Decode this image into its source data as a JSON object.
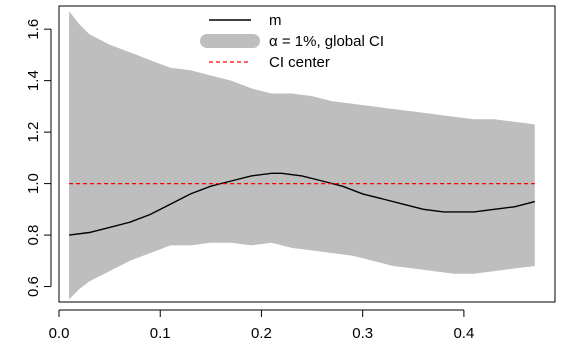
{
  "chart_data": {
    "type": "area",
    "title": "",
    "xlabel": "",
    "ylabel": "",
    "xlim": [
      0.0,
      0.49
    ],
    "ylim": [
      0.54,
      1.69
    ],
    "x_ticks": [
      0.0,
      0.1,
      0.2,
      0.3,
      0.4
    ],
    "x_tick_labels": [
      "0.0",
      "0.1",
      "0.2",
      "0.3",
      "0.4"
    ],
    "y_ticks": [
      0.6,
      0.8,
      1.0,
      1.2,
      1.4,
      1.6
    ],
    "y_tick_labels": [
      "0.6",
      "0.8",
      "1.0",
      "1.2",
      "1.4",
      "1.6"
    ],
    "grid": false,
    "legend_position": "top-center",
    "legend": [
      {
        "label": "m",
        "style": "line",
        "color": "#000000"
      },
      {
        "label": "α = 1%, global CI",
        "style": "band",
        "color": "#bebebe"
      },
      {
        "label": "CI center",
        "style": "dashed",
        "color": "#ff0000"
      }
    ],
    "series": [
      {
        "name": "m",
        "type": "line",
        "color": "#000000",
        "x": [
          0.01,
          0.03,
          0.05,
          0.07,
          0.09,
          0.11,
          0.13,
          0.15,
          0.17,
          0.19,
          0.21,
          0.22,
          0.24,
          0.26,
          0.28,
          0.3,
          0.32,
          0.34,
          0.36,
          0.38,
          0.4,
          0.41,
          0.43,
          0.45,
          0.47
        ],
        "y": [
          0.8,
          0.81,
          0.83,
          0.85,
          0.88,
          0.92,
          0.96,
          0.99,
          1.01,
          1.03,
          1.04,
          1.04,
          1.03,
          1.01,
          0.99,
          0.96,
          0.94,
          0.92,
          0.9,
          0.89,
          0.89,
          0.89,
          0.9,
          0.91,
          0.93
        ]
      },
      {
        "name": "α = 1%, global CI",
        "type": "band",
        "color": "#bebebe",
        "x": [
          0.01,
          0.02,
          0.03,
          0.05,
          0.07,
          0.09,
          0.11,
          0.13,
          0.15,
          0.17,
          0.19,
          0.21,
          0.23,
          0.25,
          0.27,
          0.29,
          0.31,
          0.33,
          0.35,
          0.37,
          0.39,
          0.41,
          0.43,
          0.45,
          0.47
        ],
        "upper": [
          1.67,
          1.62,
          1.58,
          1.54,
          1.51,
          1.48,
          1.45,
          1.44,
          1.42,
          1.4,
          1.37,
          1.35,
          1.35,
          1.34,
          1.32,
          1.31,
          1.3,
          1.29,
          1.28,
          1.27,
          1.26,
          1.25,
          1.25,
          1.24,
          1.23
        ],
        "lower": [
          0.55,
          0.59,
          0.62,
          0.66,
          0.7,
          0.73,
          0.76,
          0.76,
          0.77,
          0.77,
          0.76,
          0.77,
          0.75,
          0.74,
          0.73,
          0.72,
          0.7,
          0.68,
          0.67,
          0.66,
          0.65,
          0.65,
          0.66,
          0.67,
          0.68
        ]
      },
      {
        "name": "CI center",
        "type": "line",
        "dashed": true,
        "color": "#ff0000",
        "x": [
          0.01,
          0.47
        ],
        "y": [
          1.0,
          1.0
        ]
      }
    ]
  }
}
